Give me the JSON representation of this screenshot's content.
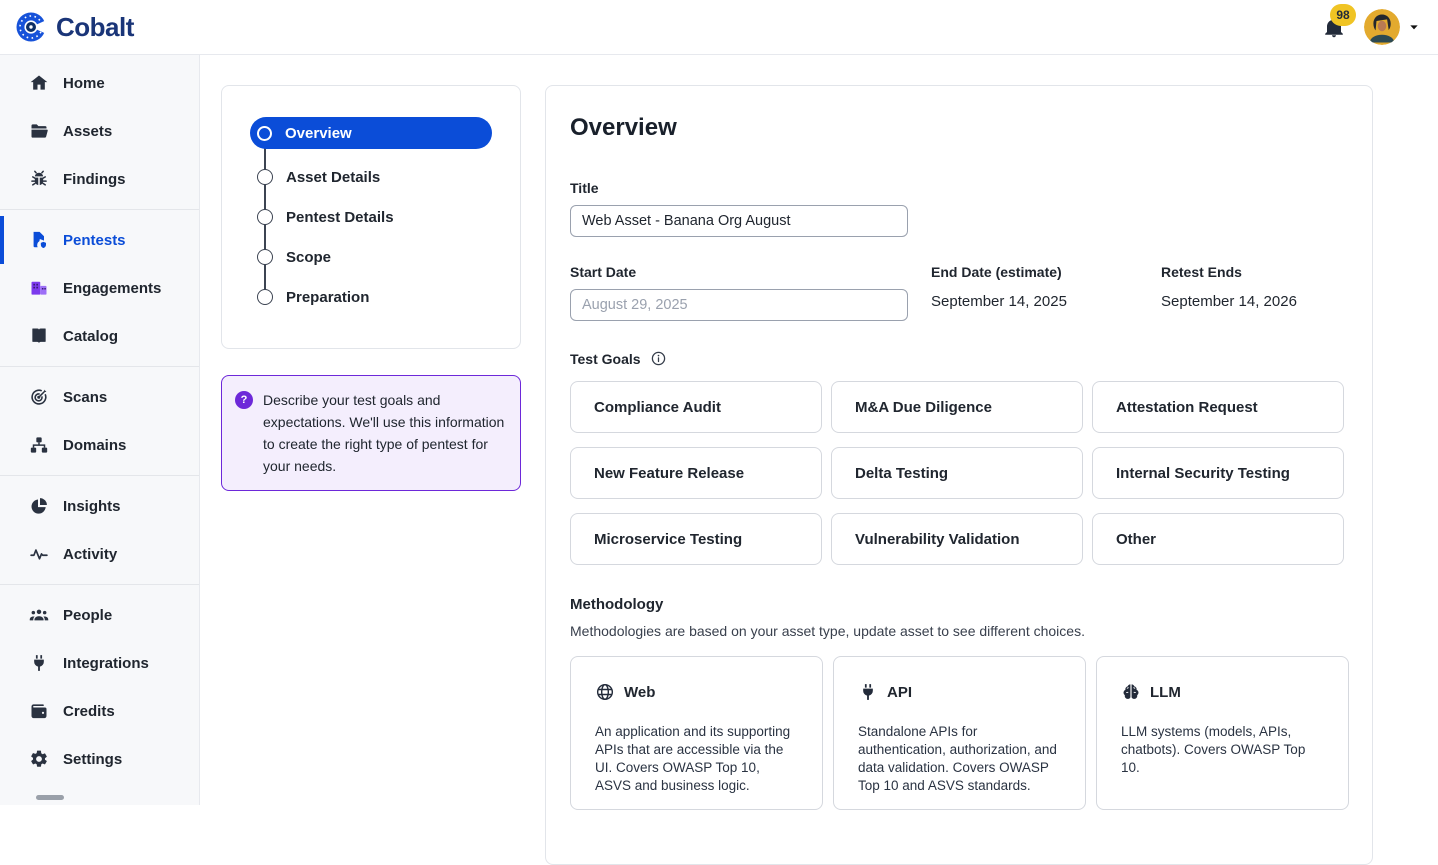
{
  "header": {
    "brand": "Cobalt",
    "notification_count": "98"
  },
  "colors": {
    "accent_blue": "#0b4dd8",
    "brand_navy": "#1a3578",
    "purple": "#6d28d9",
    "badge_yellow": "#f0c424",
    "sidebar_bg": "#f7f8fa"
  },
  "sidebar": {
    "sections": [
      {
        "items": [
          {
            "label": "Home",
            "icon": "home"
          },
          {
            "label": "Assets",
            "icon": "folder"
          },
          {
            "label": "Findings",
            "icon": "bug"
          }
        ]
      },
      {
        "items": [
          {
            "label": "Pentests",
            "icon": "pentest",
            "active": true
          },
          {
            "label": "Engagements",
            "icon": "building"
          },
          {
            "label": "Catalog",
            "icon": "book"
          }
        ]
      },
      {
        "items": [
          {
            "label": "Scans",
            "icon": "target"
          },
          {
            "label": "Domains",
            "icon": "sitemap"
          }
        ]
      },
      {
        "items": [
          {
            "label": "Insights",
            "icon": "pie"
          },
          {
            "label": "Activity",
            "icon": "pulse"
          }
        ]
      },
      {
        "items": [
          {
            "label": "People",
            "icon": "people"
          },
          {
            "label": "Integrations",
            "icon": "plug"
          },
          {
            "label": "Credits",
            "icon": "wallet"
          },
          {
            "label": "Settings",
            "icon": "gear"
          }
        ]
      }
    ]
  },
  "stepper": {
    "steps": [
      {
        "label": "Overview",
        "active": true
      },
      {
        "label": "Asset Details",
        "active": false
      },
      {
        "label": "Pentest Details",
        "active": false
      },
      {
        "label": "Scope",
        "active": false
      },
      {
        "label": "Preparation",
        "active": false
      }
    ]
  },
  "tip": {
    "text": "Describe your test goals and expectations. We'll use this information to create the right type of pentest for your needs."
  },
  "form": {
    "heading": "Overview",
    "title_label": "Title",
    "title_value": "Web Asset - Banana Org August",
    "start_date_label": "Start Date",
    "start_date_value": "August 29, 2025",
    "end_date_label": "End Date (estimate)",
    "end_date_value": "September 14, 2025",
    "retest_label": "Retest Ends",
    "retest_value": "September 14, 2026",
    "test_goals_label": "Test Goals",
    "goals": [
      "Compliance Audit",
      "M&A Due Diligence",
      "Attestation Request",
      "New Feature Release",
      "Delta Testing",
      "Internal Security Testing",
      "Microservice Testing",
      "Vulnerability Validation",
      "Other"
    ],
    "methodology_label": "Methodology",
    "methodology_hint": "Methodologies are based on your asset type, update asset to see different choices.",
    "methodologies": [
      {
        "name": "Web",
        "icon": "globe",
        "description": "An application and its supporting APIs that are accessible via the UI. Covers OWASP Top 10, ASVS and business logic."
      },
      {
        "name": "API",
        "icon": "plug",
        "description": "Standalone APIs for authentication, authorization, and data validation. Covers OWASP Top 10 and ASVS standards."
      },
      {
        "name": "LLM",
        "icon": "brain",
        "description": "LLM systems (models, APIs, chatbots). Covers OWASP Top 10."
      }
    ]
  }
}
